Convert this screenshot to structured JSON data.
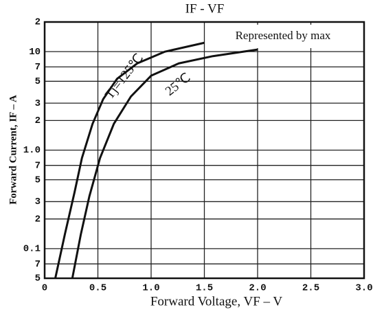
{
  "chart_data": {
    "type": "line",
    "title": "IF - VF",
    "x_label": "Forward Voltage, VF – V",
    "y_label": "Forward Current, IF – A",
    "annotation": "Represented by max",
    "log_y": true,
    "grid": true,
    "xlim": [
      0,
      3.0
    ],
    "xticks": [
      0,
      0.5,
      {
        "value": 1,
        "label": "1.0"
      },
      1.5,
      {
        "value": 2,
        "label": "2.0"
      },
      2.5,
      {
        "value": 3,
        "label": "3.0"
      }
    ],
    "ylim": [
      0.05,
      20
    ],
    "yticks": [
      {
        "value": 0.05,
        "label": "5"
      },
      {
        "value": 0.07,
        "label": "7"
      },
      0.1,
      {
        "value": 0.2,
        "label": "2"
      },
      {
        "value": 0.3,
        "label": "3"
      },
      {
        "value": 0.5,
        "label": "5"
      },
      {
        "value": 0.7,
        "label": "7"
      },
      {
        "value": 1,
        "label": "1.0"
      },
      2,
      3,
      5,
      7,
      10,
      {
        "value": 20,
        "label": "2"
      }
    ],
    "series": [
      {
        "name": "Tj=125℃",
        "color": "#111111",
        "x": [
          0.1,
          0.19,
          0.28,
          0.35,
          0.45,
          0.55,
          0.68,
          0.87,
          1.13,
          1.5
        ],
        "values": [
          0.05,
          0.14,
          0.37,
          0.83,
          1.85,
          3.3,
          5.3,
          7.6,
          10,
          12.3
        ]
      },
      {
        "name": "25℃",
        "color": "#111111",
        "x": [
          0.26,
          0.34,
          0.42,
          0.52,
          0.65,
          0.81,
          1.0,
          1.26,
          1.58,
          2.0
        ],
        "values": [
          0.05,
          0.14,
          0.34,
          0.83,
          1.85,
          3.5,
          5.7,
          7.6,
          9.0,
          10.5
        ]
      }
    ]
  }
}
